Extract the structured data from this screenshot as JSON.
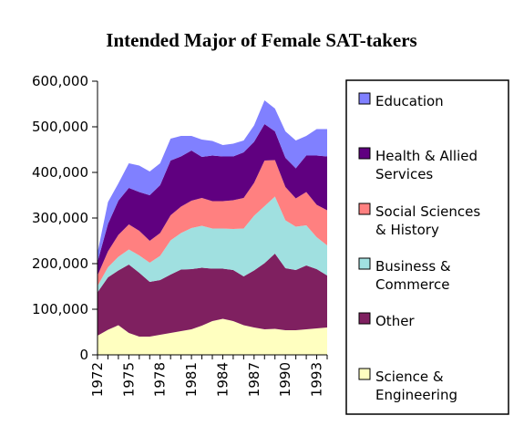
{
  "chart_data": {
    "type": "area",
    "stacked": true,
    "title": "Intended Major of Female SAT-takers",
    "xlabel": "",
    "ylabel": "",
    "x": [
      1972,
      1973,
      1974,
      1975,
      1976,
      1977,
      1978,
      1979,
      1980,
      1981,
      1982,
      1983,
      1984,
      1985,
      1986,
      1987,
      1988,
      1989,
      1990,
      1991,
      1992,
      1993,
      1994
    ],
    "x_tick_labels": [
      "1972",
      "1975",
      "1978",
      "1981",
      "1984",
      "1987",
      "1990",
      "1993"
    ],
    "ylim": [
      0,
      600000
    ],
    "y_ticks": [
      0,
      100000,
      200000,
      300000,
      400000,
      500000,
      600000
    ],
    "y_tick_labels": [
      "0",
      "100,000",
      "200,000",
      "300,000",
      "400,000",
      "500,000",
      "600,000"
    ],
    "grid": false,
    "legend_position": "right",
    "series": [
      {
        "name": "Science & Engineering",
        "color": "#ffffc0",
        "values": [
          42000,
          55000,
          65000,
          48000,
          40000,
          40000,
          44000,
          48000,
          52000,
          56000,
          64000,
          74000,
          79000,
          74000,
          65000,
          60000,
          56000,
          57000,
          54000,
          54000,
          56000,
          58000,
          60000
        ]
      },
      {
        "name": "Other",
        "color": "#7f2060",
        "values": [
          95000,
          115000,
          120000,
          150000,
          140000,
          120000,
          120000,
          128000,
          135000,
          132000,
          127000,
          115000,
          110000,
          112000,
          107000,
          125000,
          145000,
          165000,
          136000,
          132000,
          140000,
          130000,
          114000
        ]
      },
      {
        "name": "Business & Commerce",
        "color": "#a0e0e0",
        "values": [
          14000,
          22000,
          30000,
          33000,
          38000,
          42000,
          53000,
          75000,
          80000,
          90000,
          92000,
          88000,
          88000,
          90000,
          105000,
          120000,
          125000,
          125000,
          105000,
          95000,
          88000,
          70000,
          66000
        ]
      },
      {
        "name": "Social Sciences & History",
        "color": "#ff8080",
        "values": [
          23000,
          35000,
          48000,
          55000,
          54000,
          48000,
          50000,
          55000,
          58000,
          60000,
          61000,
          60000,
          60000,
          63000,
          67000,
          72000,
          100000,
          80000,
          73000,
          62000,
          73000,
          71000,
          77000
        ]
      },
      {
        "name": "Health & Allied Services",
        "color": "#600080",
        "values": [
          30000,
          60000,
          75000,
          80000,
          85000,
          100000,
          105000,
          120000,
          110000,
          110000,
          90000,
          100000,
          98000,
          96000,
          100000,
          90000,
          80000,
          63000,
          64000,
          66000,
          80000,
          108000,
          118000
        ]
      },
      {
        "name": "Education",
        "color": "#8080ff",
        "values": [
          20000,
          48000,
          38000,
          54000,
          58000,
          52000,
          48000,
          48000,
          45000,
          32000,
          38000,
          32000,
          25000,
          28000,
          26000,
          36000,
          52000,
          50000,
          58000,
          61000,
          43000,
          58000,
          60000
        ]
      }
    ]
  },
  "legend": [
    {
      "lines": [
        "Education"
      ],
      "color": "#8080ff"
    },
    {
      "lines": [
        "Health & Allied",
        "Services"
      ],
      "color": "#600080"
    },
    {
      "lines": [
        "Social Sciences",
        "& History"
      ],
      "color": "#ff8080"
    },
    {
      "lines": [
        "Business &",
        "Commerce"
      ],
      "color": "#a0e0e0"
    },
    {
      "lines": [
        "Other"
      ],
      "color": "#7f2060"
    },
    {
      "lines": [
        "Science &",
        "Engineering"
      ],
      "color": "#ffffc0"
    }
  ]
}
